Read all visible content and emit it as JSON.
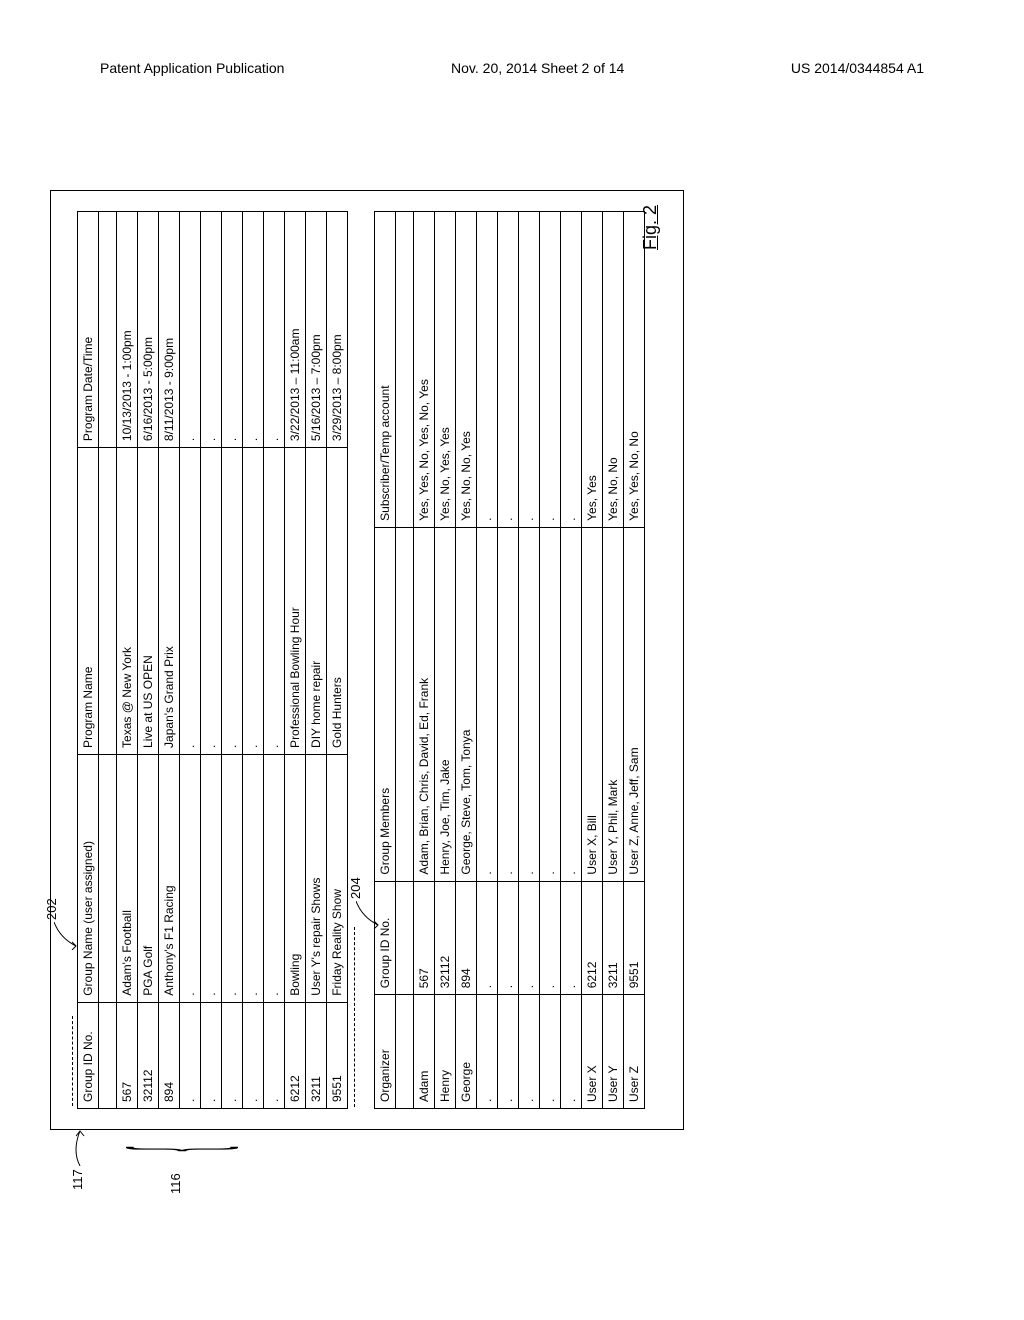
{
  "header": {
    "left": "Patent Application Publication",
    "center": "Nov. 20, 2014  Sheet 2 of 14",
    "right": "US 2014/0344854 A1"
  },
  "figure_label": "Fig. 2",
  "refs": {
    "r117": "117",
    "r116": "116",
    "r202": "202",
    "r204": "204"
  },
  "table1": {
    "headers": [
      "Group ID No.",
      "Group Name (user assigned)",
      "Program Name",
      "Program Date/Time"
    ],
    "rows": [
      [
        "",
        "",
        "",
        ""
      ],
      [
        "567",
        "Adam's Football",
        "Texas @ New York",
        "10/13/2013 - 1:00pm"
      ],
      [
        "32112",
        "PGA Golf",
        "Live at US OPEN",
        "6/16/2013 - 5:00pm"
      ],
      [
        "894",
        "Anthony's F1 Racing",
        "Japan's Grand Prix",
        "8/11/2013 - 9:00pm"
      ],
      [
        ".",
        ".",
        ".",
        "."
      ],
      [
        ".",
        ".",
        ".",
        "."
      ],
      [
        ".",
        ".",
        ".",
        "."
      ],
      [
        ".",
        ".",
        ".",
        "."
      ],
      [
        ".",
        ".",
        ".",
        "."
      ],
      [
        "6212",
        "Bowling",
        "Professional Bowling Hour",
        "3/22/2013 – 11:00am"
      ],
      [
        "3211",
        "User Y's repair Shows",
        "DIY home repair",
        "5/16/2013 – 7:00pm"
      ],
      [
        "9551",
        "Friday Reality Show",
        "Gold Hunters",
        "3/29/2013 – 8:00pm"
      ]
    ],
    "col_widths": [
      "90px",
      "200px",
      "220px",
      "180px"
    ]
  },
  "table2": {
    "headers": [
      "Organizer",
      "Group ID No.",
      "Group Members",
      "Subscriber/Temp account"
    ],
    "rows": [
      [
        "",
        "",
        "",
        ""
      ],
      [
        "Adam",
        "567",
        "Adam, Brian, Chris, David, Ed, Frank",
        "Yes, Yes, No, Yes, No, Yes"
      ],
      [
        "Henry",
        "32112",
        "Henry, Joe, Tim, Jake",
        "Yes, No, Yes, Yes"
      ],
      [
        "George",
        "894",
        "George, Steve, Tom, Tonya",
        "Yes, No, No, Yes"
      ],
      [
        ".",
        ".",
        ".",
        "."
      ],
      [
        ".",
        ".",
        ".",
        "."
      ],
      [
        ".",
        ".",
        ".",
        "."
      ],
      [
        ".",
        ".",
        ".",
        "."
      ],
      [
        ".",
        ".",
        ".",
        "."
      ],
      [
        "User X",
        "6212",
        "User X, Bill",
        "Yes, Yes"
      ],
      [
        "User Y",
        "3211",
        "User Y, Phil, Mark",
        "Yes, No, No"
      ],
      [
        "User Z",
        "9551",
        "User Z, Anne, Jeff, Sam",
        "Yes, Yes, No, No"
      ]
    ],
    "col_widths": [
      "90px",
      "90px",
      "260px",
      "250px"
    ]
  }
}
